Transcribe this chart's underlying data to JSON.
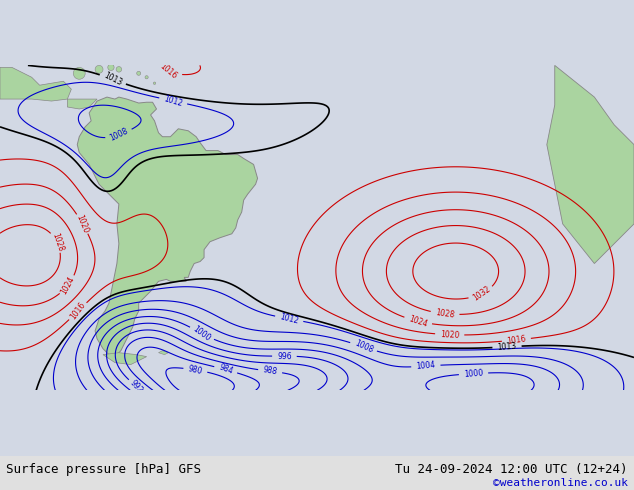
{
  "title_left": "Surface pressure [hPa] GFS",
  "title_right": "Tu 24-09-2024 12:00 UTC (12+24)",
  "credit": "©weatheronline.co.uk",
  "bg_color": "#d2d8e4",
  "land_color": "#aad4a0",
  "border_color": "#888888",
  "contour_blue_color": "#0000cc",
  "contour_red_color": "#cc0000",
  "contour_black_color": "#000000",
  "fig_width": 6.34,
  "fig_height": 4.9,
  "dpi": 100,
  "bottom_bar_color": "#e0e0e0",
  "text_color_left": "#000000",
  "text_color_credit": "#0000cc",
  "font_size_label": 9,
  "font_size_credit": 8,
  "lon_min": -100,
  "lon_max": 60,
  "lat_min": -62,
  "lat_max": 20
}
